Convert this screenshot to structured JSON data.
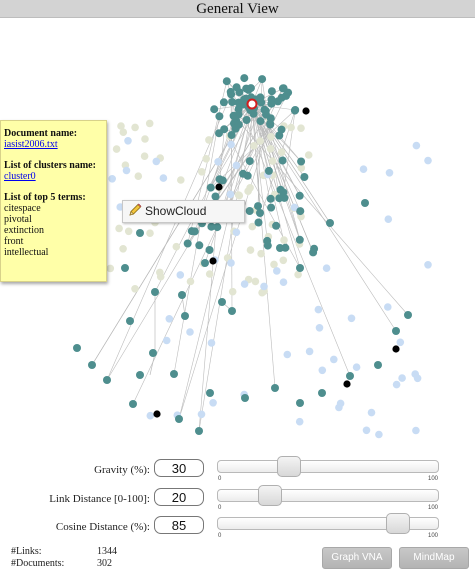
{
  "window": {
    "title": "General View"
  },
  "tooltip": {
    "document_header": "Document name:",
    "document_name": "iasist2006.txt",
    "clusters_header": "List of clusters name:",
    "cluster_name": "cluster0",
    "terms_header": "List of top 5 terms:",
    "terms": [
      "citespace",
      "pivotal",
      "extinction",
      "front",
      "intellectual"
    ]
  },
  "context_menu": {
    "label": "ShowCloud",
    "icon": "pencil-icon"
  },
  "controls": {
    "gravity": {
      "label": "Gravity (%):",
      "value": "30",
      "slider_level": 30,
      "min": "0",
      "max": "100"
    },
    "link_distance": {
      "label": "Link Distance [0-100]:",
      "value": "20",
      "slider_level": 20,
      "min": "0",
      "max": "100"
    },
    "cosine_distance": {
      "label": "Cosine Distance (%):",
      "value": "85",
      "slider_level": 85,
      "min": "0",
      "max": "100"
    }
  },
  "stats": {
    "links_label": "#Links:",
    "links_value": "1344",
    "documents_label": "#Documents:",
    "documents_value": "302"
  },
  "buttons": {
    "graph_vna": "Graph VNA",
    "mindmap": "MindMap"
  },
  "colors": {
    "node_teal": "#4e8e8e",
    "node_lightblue": "#c8dcf4",
    "node_beige": "#e2e5d2",
    "node_black": "#000000",
    "node_selected": "#d21e1e",
    "edge": "#bcbcbc"
  }
}
